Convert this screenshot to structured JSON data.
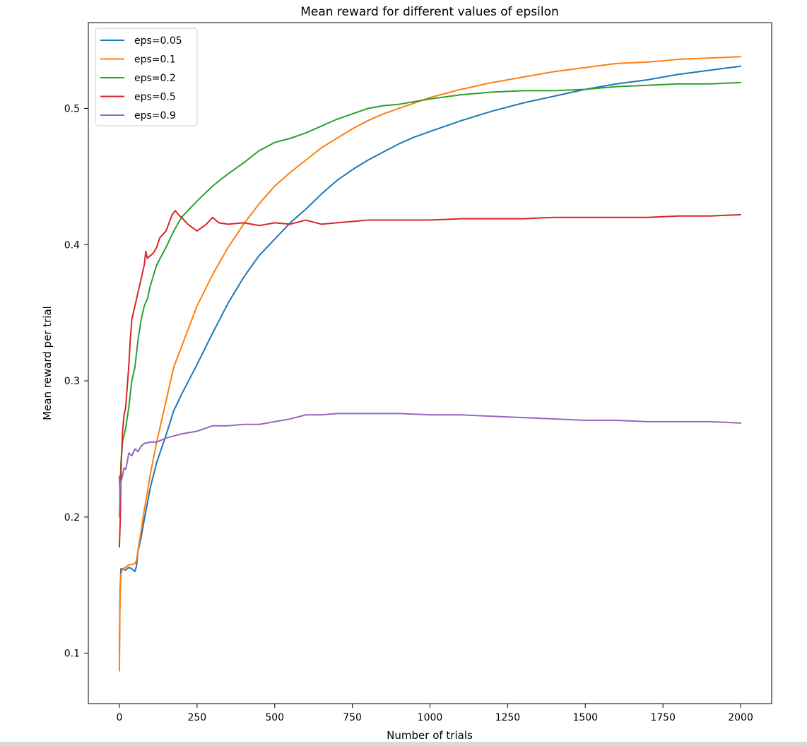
{
  "chart_data": {
    "type": "line",
    "title": "Mean reward for different values of epsilon",
    "xlabel": "Number of trials",
    "ylabel": "Mean reward per trial",
    "xlim": [
      -100,
      2100
    ],
    "ylim": [
      0.063,
      0.563
    ],
    "xticks": [
      0,
      250,
      500,
      750,
      1000,
      1250,
      1500,
      1750,
      2000
    ],
    "xtick_labels": [
      "0",
      "250",
      "500",
      "750",
      "1000",
      "1250",
      "1500",
      "1750",
      "2000"
    ],
    "yticks": [
      0.1,
      0.2,
      0.3,
      0.4,
      0.5
    ],
    "ytick_labels": [
      "0.1",
      "0.2",
      "0.3",
      "0.4",
      "0.5"
    ],
    "grid": false,
    "legend_position": "upper-left",
    "series": [
      {
        "name": "eps=0.05",
        "color": "#1f77b4",
        "x": [
          0,
          2,
          5,
          10,
          20,
          30,
          40,
          50,
          55,
          60,
          70,
          80,
          90,
          100,
          120,
          150,
          175,
          200,
          250,
          300,
          350,
          400,
          450,
          500,
          550,
          600,
          650,
          700,
          750,
          800,
          850,
          900,
          950,
          1000,
          1100,
          1200,
          1300,
          1400,
          1500,
          1600,
          1700,
          1800,
          1900,
          2000
        ],
        "values": [
          0.1,
          0.145,
          0.162,
          0.162,
          0.161,
          0.163,
          0.162,
          0.16,
          0.164,
          0.175,
          0.185,
          0.198,
          0.21,
          0.222,
          0.24,
          0.26,
          0.278,
          0.29,
          0.312,
          0.335,
          0.357,
          0.376,
          0.392,
          0.404,
          0.416,
          0.426,
          0.437,
          0.447,
          0.455,
          0.462,
          0.468,
          0.474,
          0.479,
          0.483,
          0.491,
          0.498,
          0.504,
          0.509,
          0.514,
          0.518,
          0.521,
          0.525,
          0.528,
          0.531
        ]
      },
      {
        "name": "eps=0.1",
        "color": "#ff7f0e",
        "x": [
          0,
          2,
          5,
          10,
          20,
          30,
          40,
          50,
          55,
          60,
          70,
          80,
          90,
          100,
          120,
          150,
          175,
          200,
          250,
          300,
          350,
          400,
          450,
          500,
          550,
          600,
          650,
          700,
          750,
          800,
          850,
          900,
          950,
          1000,
          1100,
          1200,
          1300,
          1400,
          1500,
          1600,
          1700,
          1800,
          1900,
          2000
        ],
        "values": [
          0.087,
          0.14,
          0.158,
          0.162,
          0.163,
          0.165,
          0.165,
          0.166,
          0.168,
          0.176,
          0.19,
          0.205,
          0.218,
          0.232,
          0.255,
          0.285,
          0.31,
          0.325,
          0.355,
          0.378,
          0.398,
          0.415,
          0.43,
          0.443,
          0.453,
          0.462,
          0.471,
          0.478,
          0.485,
          0.491,
          0.496,
          0.5,
          0.504,
          0.508,
          0.514,
          0.519,
          0.523,
          0.527,
          0.53,
          0.533,
          0.534,
          0.536,
          0.537,
          0.538
        ]
      },
      {
        "name": "eps=0.2",
        "color": "#2ca02c",
        "x": [
          0,
          2,
          5,
          10,
          15,
          20,
          30,
          40,
          50,
          60,
          70,
          80,
          90,
          100,
          120,
          150,
          175,
          200,
          250,
          300,
          350,
          400,
          450,
          500,
          550,
          600,
          650,
          700,
          750,
          800,
          850,
          900,
          950,
          1000,
          1100,
          1200,
          1300,
          1400,
          1500,
          1600,
          1700,
          1800,
          1900,
          2000
        ],
        "values": [
          0.23,
          0.215,
          0.24,
          0.255,
          0.26,
          0.265,
          0.28,
          0.3,
          0.31,
          0.33,
          0.345,
          0.355,
          0.36,
          0.37,
          0.385,
          0.398,
          0.41,
          0.42,
          0.432,
          0.443,
          0.452,
          0.46,
          0.469,
          0.475,
          0.478,
          0.482,
          0.487,
          0.492,
          0.496,
          0.5,
          0.502,
          0.503,
          0.505,
          0.507,
          0.51,
          0.512,
          0.513,
          0.513,
          0.514,
          0.516,
          0.517,
          0.518,
          0.518,
          0.519
        ]
      },
      {
        "name": "eps=0.5",
        "color": "#d62728",
        "x": [
          0,
          3,
          6,
          10,
          15,
          20,
          30,
          35,
          40,
          50,
          55,
          60,
          70,
          80,
          85,
          90,
          100,
          110,
          120,
          130,
          150,
          170,
          180,
          190,
          200,
          220,
          250,
          280,
          300,
          320,
          350,
          400,
          450,
          500,
          550,
          600,
          650,
          700,
          750,
          800,
          900,
          1000,
          1100,
          1200,
          1300,
          1400,
          1500,
          1600,
          1700,
          1800,
          1900,
          2000
        ],
        "values": [
          0.178,
          0.2,
          0.24,
          0.262,
          0.275,
          0.28,
          0.31,
          0.33,
          0.345,
          0.355,
          0.36,
          0.365,
          0.375,
          0.385,
          0.395,
          0.39,
          0.392,
          0.394,
          0.398,
          0.405,
          0.41,
          0.422,
          0.425,
          0.422,
          0.42,
          0.415,
          0.41,
          0.415,
          0.42,
          0.416,
          0.415,
          0.416,
          0.414,
          0.416,
          0.415,
          0.418,
          0.415,
          0.416,
          0.417,
          0.418,
          0.418,
          0.418,
          0.419,
          0.419,
          0.419,
          0.42,
          0.42,
          0.42,
          0.42,
          0.421,
          0.421,
          0.422
        ]
      },
      {
        "name": "eps=0.9",
        "color": "#9467bd",
        "x": [
          0,
          2,
          5,
          10,
          15,
          20,
          25,
          30,
          40,
          50,
          60,
          70,
          80,
          100,
          120,
          150,
          200,
          250,
          300,
          350,
          400,
          450,
          500,
          550,
          600,
          650,
          700,
          750,
          800,
          900,
          1000,
          1100,
          1200,
          1300,
          1400,
          1500,
          1600,
          1700,
          1800,
          1900,
          2000
        ],
        "values": [
          0.2,
          0.218,
          0.226,
          0.23,
          0.236,
          0.235,
          0.24,
          0.247,
          0.245,
          0.25,
          0.248,
          0.252,
          0.254,
          0.255,
          0.255,
          0.258,
          0.261,
          0.263,
          0.267,
          0.267,
          0.268,
          0.268,
          0.27,
          0.272,
          0.275,
          0.275,
          0.276,
          0.276,
          0.276,
          0.276,
          0.275,
          0.275,
          0.274,
          0.273,
          0.272,
          0.271,
          0.271,
          0.27,
          0.27,
          0.27,
          0.269
        ]
      }
    ]
  }
}
